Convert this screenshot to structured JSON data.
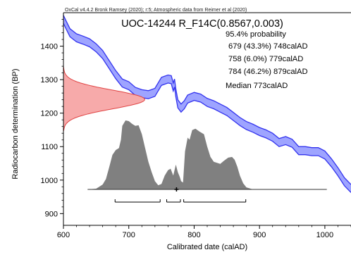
{
  "chart_data": {
    "type": "area",
    "credit": "OxCal v4.4.2 Bronk Ramsey (2020); r:5; Atmospheric data from Reimer et al (2020)",
    "title": "UOC-14244 R_F14C(0.8567,0.003)",
    "annotations": {
      "probability_label": "95.4% probability",
      "ranges": [
        "679 (43.3%) 748calAD",
        "758 (6.0%) 779calAD",
        "784 (46.2%) 879calAD"
      ],
      "median": "Median 773calAD"
    },
    "range_bars": [
      [
        679,
        748
      ],
      [
        758,
        779
      ],
      [
        784,
        879
      ]
    ],
    "median": 773,
    "xlabel": "Calibrated date (calAD)",
    "ylabel": "Radiocarbon determination (BP)",
    "xlim": [
      600,
      1040
    ],
    "ylim": [
      865,
      1500
    ],
    "xticks": [
      600,
      700,
      800,
      900,
      1000
    ],
    "yticks": [
      900,
      1000,
      1100,
      1200,
      1300,
      1400
    ],
    "colors": {
      "curve": "#3333ee",
      "curve_fill": "#9ea4ff",
      "radiocarbon_fill": "#f7aaaa",
      "radiocarbon_line": "#e04444",
      "posterior_fill": "#808080"
    },
    "calibration_curve": [
      [
        600,
        1480
      ],
      [
        605,
        1460
      ],
      [
        610,
        1440
      ],
      [
        620,
        1425
      ],
      [
        630,
        1418
      ],
      [
        640,
        1410
      ],
      [
        650,
        1395
      ],
      [
        660,
        1375
      ],
      [
        670,
        1345
      ],
      [
        680,
        1315
      ],
      [
        690,
        1290
      ],
      [
        700,
        1282
      ],
      [
        710,
        1265
      ],
      [
        720,
        1258
      ],
      [
        730,
        1255
      ],
      [
        740,
        1262
      ],
      [
        750,
        1295
      ],
      [
        760,
        1302
      ],
      [
        765,
        1300
      ],
      [
        768,
        1278
      ],
      [
        770,
        1290
      ],
      [
        772,
        1260
      ],
      [
        775,
        1228
      ],
      [
        780,
        1215
      ],
      [
        785,
        1225
      ],
      [
        790,
        1242
      ],
      [
        800,
        1250
      ],
      [
        810,
        1245
      ],
      [
        820,
        1232
      ],
      [
        830,
        1225
      ],
      [
        840,
        1215
      ],
      [
        850,
        1205
      ],
      [
        860,
        1190
      ],
      [
        870,
        1175
      ],
      [
        880,
        1163
      ],
      [
        890,
        1155
      ],
      [
        900,
        1145
      ],
      [
        910,
        1138
      ],
      [
        920,
        1128
      ],
      [
        930,
        1112
      ],
      [
        940,
        1118
      ],
      [
        950,
        1110
      ],
      [
        960,
        1088
      ],
      [
        970,
        1088
      ],
      [
        980,
        1085
      ],
      [
        990,
        1085
      ],
      [
        1000,
        1075
      ],
      [
        1010,
        1052
      ],
      [
        1020,
        1025
      ],
      [
        1030,
        995
      ],
      [
        1040,
        975
      ]
    ],
    "radiocarbon_age": {
      "mean": 1243,
      "sigma": 28
    },
    "posterior_density": [
      [
        637,
        0
      ],
      [
        650,
        0.01
      ],
      [
        660,
        0.07
      ],
      [
        665,
        0.15
      ],
      [
        670,
        0.32
      ],
      [
        675,
        0.5
      ],
      [
        680,
        0.57
      ],
      [
        685,
        0.6
      ],
      [
        688,
        0.72
      ],
      [
        690,
        0.92
      ],
      [
        695,
        1.0
      ],
      [
        700,
        0.99
      ],
      [
        705,
        0.95
      ],
      [
        710,
        0.92
      ],
      [
        715,
        0.93
      ],
      [
        720,
        0.8
      ],
      [
        725,
        0.6
      ],
      [
        730,
        0.4
      ],
      [
        735,
        0.25
      ],
      [
        740,
        0.12
      ],
      [
        745,
        0.06
      ],
      [
        750,
        0.08
      ],
      [
        755,
        0.2
      ],
      [
        760,
        0.28
      ],
      [
        764,
        0.3
      ],
      [
        768,
        0.2
      ],
      [
        772,
        0.36
      ],
      [
        775,
        0.25
      ],
      [
        778,
        0.18
      ],
      [
        780,
        0.12
      ],
      [
        783,
        0.1
      ],
      [
        786,
        0.55
      ],
      [
        790,
        0.75
      ],
      [
        793,
        0.72
      ],
      [
        797,
        0.86
      ],
      [
        802,
        0.88
      ],
      [
        808,
        0.84
      ],
      [
        815,
        0.8
      ],
      [
        820,
        0.62
      ],
      [
        825,
        0.47
      ],
      [
        830,
        0.4
      ],
      [
        840,
        0.37
      ],
      [
        845,
        0.41
      ],
      [
        852,
        0.46
      ],
      [
        858,
        0.47
      ],
      [
        862,
        0.43
      ],
      [
        866,
        0.33
      ],
      [
        870,
        0.2
      ],
      [
        875,
        0.09
      ],
      [
        880,
        0.03
      ],
      [
        890,
        0
      ],
      [
        1003,
        0
      ]
    ]
  }
}
